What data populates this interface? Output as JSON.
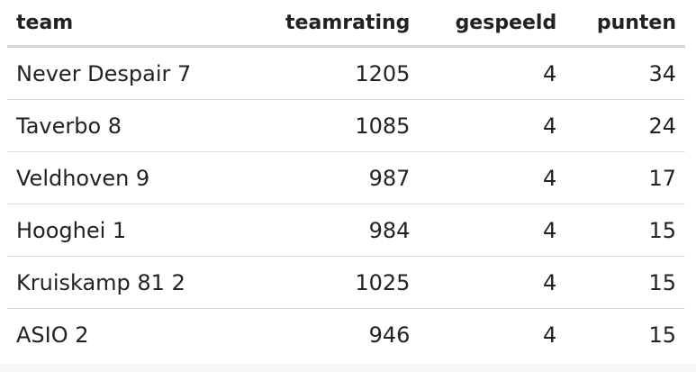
{
  "table": {
    "header": [
      "team",
      "teamrating",
      "gespeeld",
      "punten"
    ],
    "rows": [
      [
        "Never Despair 7",
        1205,
        4,
        34
      ],
      [
        "Taverbo 8",
        1085,
        4,
        24
      ],
      [
        "Veldhoven 9",
        987,
        4,
        17
      ],
      [
        "Hooghei 1",
        984,
        4,
        15
      ],
      [
        "Kruiskamp 81 2",
        1025,
        4,
        15
      ],
      [
        "ASIO 2",
        946,
        4,
        15
      ]
    ]
  }
}
